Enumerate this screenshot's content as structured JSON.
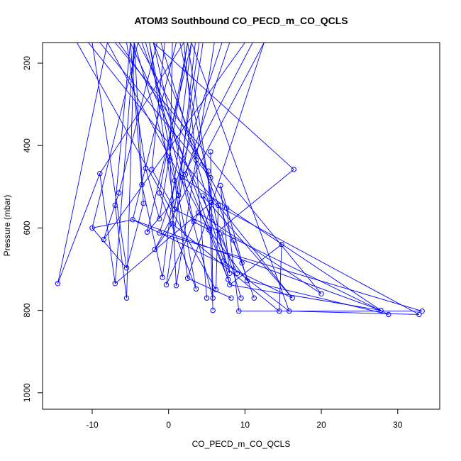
{
  "chart_data": {
    "type": "line",
    "title": "ATOM3 Southbound CO_PECD_m_CO_QCLS",
    "xlabel": "CO_PECD_m_CO_QCLS",
    "ylabel": "Pressure (mbar)",
    "xlim": [
      -16.5,
      35.5
    ],
    "ylim": [
      1040,
      150
    ],
    "y_reversed": true,
    "xticks": [
      -10,
      0,
      10,
      20,
      30
    ],
    "yticks": [
      200,
      400,
      600,
      800,
      1000
    ],
    "grid": false,
    "legend": "none",
    "line_color": "#0000FF",
    "marker": "open-circle",
    "points": [
      [
        -14.5,
        735
      ],
      [
        -10.0,
        600
      ],
      [
        -9.0,
        468
      ],
      [
        -8.5,
        628
      ],
      [
        -7.0,
        545
      ],
      [
        -7.0,
        735
      ],
      [
        -6.5,
        515
      ],
      [
        -5.5,
        770
      ],
      [
        -5.5,
        697
      ],
      [
        -4.7,
        580
      ],
      [
        -3.5,
        495
      ],
      [
        -3.3,
        540
      ],
      [
        -3.0,
        455
      ],
      [
        -2.8,
        610
      ],
      [
        -2.2,
        458
      ],
      [
        -1.8,
        652
      ],
      [
        -1.2,
        515
      ],
      [
        -1.2,
        612
      ],
      [
        -1.2,
        578
      ],
      [
        -0.8,
        720
      ],
      [
        -0.3,
        738
      ],
      [
        0.2,
        435
      ],
      [
        0.5,
        590
      ],
      [
        0.8,
        485
      ],
      [
        0.8,
        555
      ],
      [
        1.0,
        740
      ],
      [
        1.3,
        521
      ],
      [
        1.8,
        478
      ],
      [
        2.2,
        470
      ],
      [
        2.5,
        722
      ],
      [
        3.3,
        585
      ],
      [
        3.6,
        748
      ],
      [
        3.6,
        435
      ],
      [
        3.9,
        563
      ],
      [
        4.5,
        522
      ],
      [
        5.0,
        770
      ],
      [
        5.2,
        462
      ],
      [
        5.3,
        605
      ],
      [
        5.5,
        415
      ],
      [
        5.5,
        478
      ],
      [
        5.6,
        538
      ],
      [
        5.8,
        770
      ],
      [
        5.8,
        800
      ],
      [
        6.2,
        750
      ],
      [
        6.5,
        545
      ],
      [
        6.8,
        497
      ],
      [
        6.9,
        612
      ],
      [
        7.2,
        680
      ],
      [
        7.6,
        552
      ],
      [
        7.8,
        725
      ],
      [
        8.0,
        710
      ],
      [
        8.0,
        738
      ],
      [
        8.2,
        770
      ],
      [
        8.5,
        630
      ],
      [
        9.0,
        710
      ],
      [
        9.2,
        802
      ],
      [
        9.5,
        770
      ],
      [
        9.6,
        685
      ],
      [
        10.3,
        728
      ],
      [
        11.2,
        770
      ],
      [
        14.5,
        802
      ],
      [
        14.8,
        640
      ],
      [
        15.8,
        802
      ],
      [
        16.2,
        770
      ],
      [
        16.4,
        458
      ],
      [
        20.0,
        760
      ],
      [
        27.8,
        800
      ],
      [
        28.8,
        810
      ],
      [
        32.8,
        810
      ],
      [
        33.2,
        802
      ]
    ],
    "segments": [
      [
        [
          -8.0,
          150
        ],
        [
          -14.5,
          735
        ]
      ],
      [
        [
          -4.0,
          150
        ],
        [
          -10.0,
          600
        ]
      ],
      [
        [
          2.0,
          150
        ],
        [
          -9.0,
          468
        ]
      ],
      [
        [
          10.0,
          150
        ],
        [
          -8.5,
          628
        ]
      ],
      [
        [
          -5.0,
          150
        ],
        [
          -7.0,
          545
        ]
      ],
      [
        [
          -4.5,
          150
        ],
        [
          -7.0,
          735
        ]
      ],
      [
        [
          -1.5,
          150
        ],
        [
          -6.5,
          515
        ]
      ],
      [
        [
          -4.5,
          150
        ],
        [
          -5.5,
          770
        ]
      ],
      [
        [
          -10.0,
          150
        ],
        [
          -5.5,
          697
        ]
      ],
      [
        [
          1.0,
          150
        ],
        [
          -4.7,
          580
        ]
      ],
      [
        [
          -5.0,
          150
        ],
        [
          -3.5,
          495
        ]
      ],
      [
        [
          -4.5,
          150
        ],
        [
          -3.3,
          540
        ]
      ],
      [
        [
          -5.5,
          150
        ],
        [
          -3.0,
          455
        ]
      ],
      [
        [
          3.0,
          150
        ],
        [
          -2.8,
          610
        ]
      ],
      [
        [
          -0.5,
          150
        ],
        [
          -2.2,
          458
        ]
      ],
      [
        [
          12.5,
          150
        ],
        [
          -1.8,
          652
        ]
      ],
      [
        [
          2.5,
          150
        ],
        [
          -1.2,
          515
        ]
      ],
      [
        [
          7.0,
          150
        ],
        [
          -1.2,
          612
        ]
      ],
      [
        [
          2.5,
          150
        ],
        [
          -1.2,
          578
        ]
      ],
      [
        [
          3.0,
          150
        ],
        [
          -0.8,
          720
        ]
      ],
      [
        [
          4.5,
          150
        ],
        [
          -0.3,
          738
        ]
      ],
      [
        [
          0.5,
          150
        ],
        [
          0.2,
          435
        ]
      ],
      [
        [
          4.0,
          150
        ],
        [
          0.5,
          590
        ]
      ],
      [
        [
          -4.5,
          150
        ],
        [
          0.8,
          485
        ]
      ],
      [
        [
          -2.5,
          150
        ],
        [
          0.8,
          555
        ]
      ],
      [
        [
          6.0,
          150
        ],
        [
          1.0,
          740
        ]
      ],
      [
        [
          3.5,
          150
        ],
        [
          1.3,
          521
        ]
      ],
      [
        [
          11.0,
          150
        ],
        [
          1.8,
          478
        ]
      ],
      [
        [
          8.0,
          150
        ],
        [
          2.2,
          470
        ]
      ],
      [
        [
          12.5,
          150
        ],
        [
          2.5,
          722
        ]
      ],
      [
        [
          -2.0,
          150
        ],
        [
          3.3,
          585
        ]
      ],
      [
        [
          -2.5,
          150
        ],
        [
          3.6,
          748
        ]
      ],
      [
        [
          2.0,
          150
        ],
        [
          3.6,
          435
        ]
      ],
      [
        [
          -8.0,
          150
        ],
        [
          5.3,
          605
        ]
      ],
      [
        [
          2.5,
          150
        ],
        [
          5.6,
          538
        ]
      ],
      [
        [
          -3.0,
          150
        ],
        [
          5.8,
          770
        ]
      ],
      [
        [
          -12.0,
          150
        ],
        [
          6.2,
          750
        ]
      ],
      [
        [
          -6.5,
          150
        ],
        [
          5.2,
          462
        ]
      ],
      [
        [
          -9.0,
          150
        ],
        [
          5.5,
          478
        ]
      ],
      [
        [
          -4.0,
          150
        ],
        [
          7.6,
          552
        ]
      ],
      [
        [
          -1.0,
          150
        ],
        [
          8.0,
          710
        ]
      ],
      [
        [
          1.5,
          150
        ],
        [
          8.0,
          738
        ]
      ],
      [
        [
          -3.5,
          150
        ],
        [
          7.8,
          725
        ]
      ],
      [
        [
          -5.0,
          150
        ],
        [
          9.0,
          710
        ]
      ],
      [
        [
          -2.0,
          150
        ],
        [
          9.6,
          685
        ]
      ],
      [
        [
          3.0,
          150
        ],
        [
          15.8,
          802
        ]
      ],
      [
        [
          -2.0,
          150
        ],
        [
          16.4,
          458
        ]
      ],
      [
        [
          -7.0,
          150
        ],
        [
          20.0,
          760
        ]
      ],
      [
        [
          -10.5,
          150
        ],
        [
          16.2,
          770
        ]
      ],
      [
        [
          -14.5,
          735
        ],
        [
          -9.0,
          468
        ]
      ],
      [
        [
          -9.0,
          468
        ],
        [
          -7.0,
          735
        ]
      ],
      [
        [
          -10.0,
          600
        ],
        [
          -5.5,
          697
        ]
      ],
      [
        [
          -8.5,
          628
        ],
        [
          -6.5,
          515
        ]
      ],
      [
        [
          -7.0,
          545
        ],
        [
          -5.5,
          770
        ]
      ],
      [
        [
          -5.5,
          697
        ],
        [
          -3.3,
          540
        ]
      ],
      [
        [
          -3.5,
          495
        ],
        [
          -0.8,
          720
        ]
      ],
      [
        [
          -3.0,
          455
        ],
        [
          -1.2,
          578
        ]
      ],
      [
        [
          -2.8,
          610
        ],
        [
          1.3,
          521
        ]
      ],
      [
        [
          -2.2,
          458
        ],
        [
          0.8,
          555
        ]
      ],
      [
        [
          -1.8,
          652
        ],
        [
          0.5,
          590
        ]
      ],
      [
        [
          0.2,
          435
        ],
        [
          1.0,
          740
        ]
      ],
      [
        [
          0.8,
          485
        ],
        [
          2.5,
          722
        ]
      ],
      [
        [
          -1.2,
          515
        ],
        [
          3.6,
          748
        ]
      ],
      [
        [
          -0.3,
          738
        ],
        [
          3.9,
          563
        ]
      ],
      [
        [
          -7.0,
          735
        ],
        [
          5.6,
          538
        ]
      ],
      [
        [
          3.3,
          585
        ],
        [
          5.3,
          605
        ]
      ],
      [
        [
          4.5,
          522
        ],
        [
          7.2,
          680
        ]
      ],
      [
        [
          3.6,
          435
        ],
        [
          5.0,
          770
        ]
      ],
      [
        [
          5.2,
          462
        ],
        [
          5.8,
          800
        ]
      ],
      [
        [
          5.5,
          415
        ],
        [
          5.8,
          770
        ]
      ],
      [
        [
          6.5,
          545
        ],
        [
          6.2,
          750
        ]
      ],
      [
        [
          6.8,
          497
        ],
        [
          8.0,
          710
        ]
      ],
      [
        [
          2.2,
          470
        ],
        [
          7.8,
          725
        ]
      ],
      [
        [
          6.9,
          612
        ],
        [
          9.5,
          770
        ]
      ],
      [
        [
          7.6,
          552
        ],
        [
          9.2,
          802
        ]
      ],
      [
        [
          5.3,
          605
        ],
        [
          10.3,
          728
        ]
      ],
      [
        [
          8.5,
          630
        ],
        [
          11.2,
          770
        ]
      ],
      [
        [
          2.5,
          722
        ],
        [
          8.2,
          770
        ]
      ],
      [
        [
          16.4,
          458
        ],
        [
          6.2,
          612
        ]
      ],
      [
        [
          -10.0,
          600
        ],
        [
          -4.7,
          580
        ]
      ],
      [
        [
          -4.7,
          580
        ],
        [
          16.2,
          770
        ]
      ],
      [
        [
          0.5,
          590
        ],
        [
          14.5,
          802
        ]
      ],
      [
        [
          3.9,
          563
        ],
        [
          20.0,
          760
        ]
      ],
      [
        [
          1.8,
          478
        ],
        [
          27.8,
          800
        ]
      ],
      [
        [
          5.6,
          538
        ],
        [
          32.8,
          810
        ]
      ],
      [
        [
          0.8,
          555
        ],
        [
          28.8,
          810
        ]
      ],
      [
        [
          -1.2,
          612
        ],
        [
          33.2,
          802
        ]
      ],
      [
        [
          -4.7,
          580
        ],
        [
          27.8,
          800
        ]
      ],
      [
        [
          8.0,
          738
        ],
        [
          27.8,
          800
        ]
      ],
      [
        [
          9.2,
          802
        ],
        [
          33.2,
          802
        ]
      ],
      [
        [
          14.8,
          640
        ],
        [
          14.5,
          802
        ]
      ],
      [
        [
          14.8,
          640
        ],
        [
          8.0,
          738
        ]
      ],
      [
        [
          15.8,
          802
        ],
        [
          32.8,
          810
        ]
      ],
      [
        [
          10.3,
          728
        ],
        [
          28.8,
          810
        ]
      ],
      [
        [
          7.2,
          680
        ],
        [
          15.8,
          802
        ]
      ],
      [
        [
          4.5,
          522
        ],
        [
          16.2,
          770
        ]
      ],
      [
        [
          6.8,
          497
        ],
        [
          10.3,
          728
        ]
      ]
    ]
  }
}
